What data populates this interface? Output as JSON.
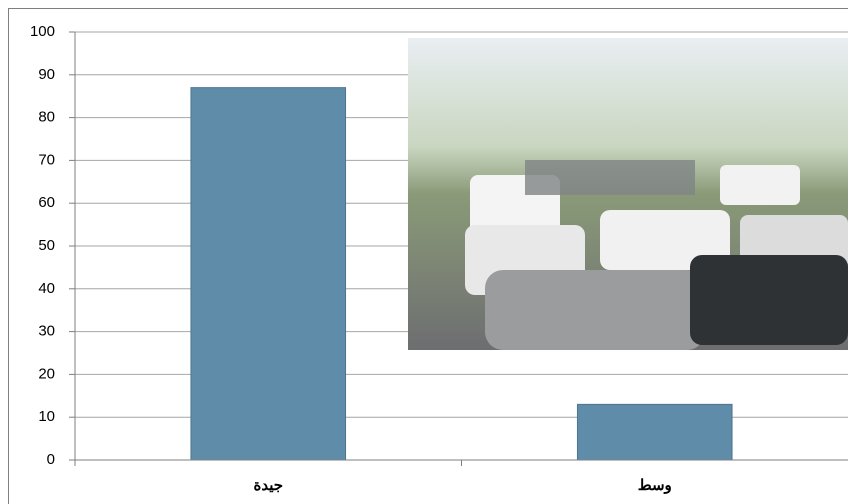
{
  "chart_data": {
    "type": "bar",
    "categories": [
      "جيدة",
      "وسط"
    ],
    "values": [
      87,
      13
    ],
    "color": "#5f8ca9",
    "ylim": [
      0,
      100
    ],
    "yticks": [
      0,
      10,
      20,
      30,
      40,
      50,
      60,
      70,
      80,
      90,
      100
    ],
    "grid": true
  }
}
